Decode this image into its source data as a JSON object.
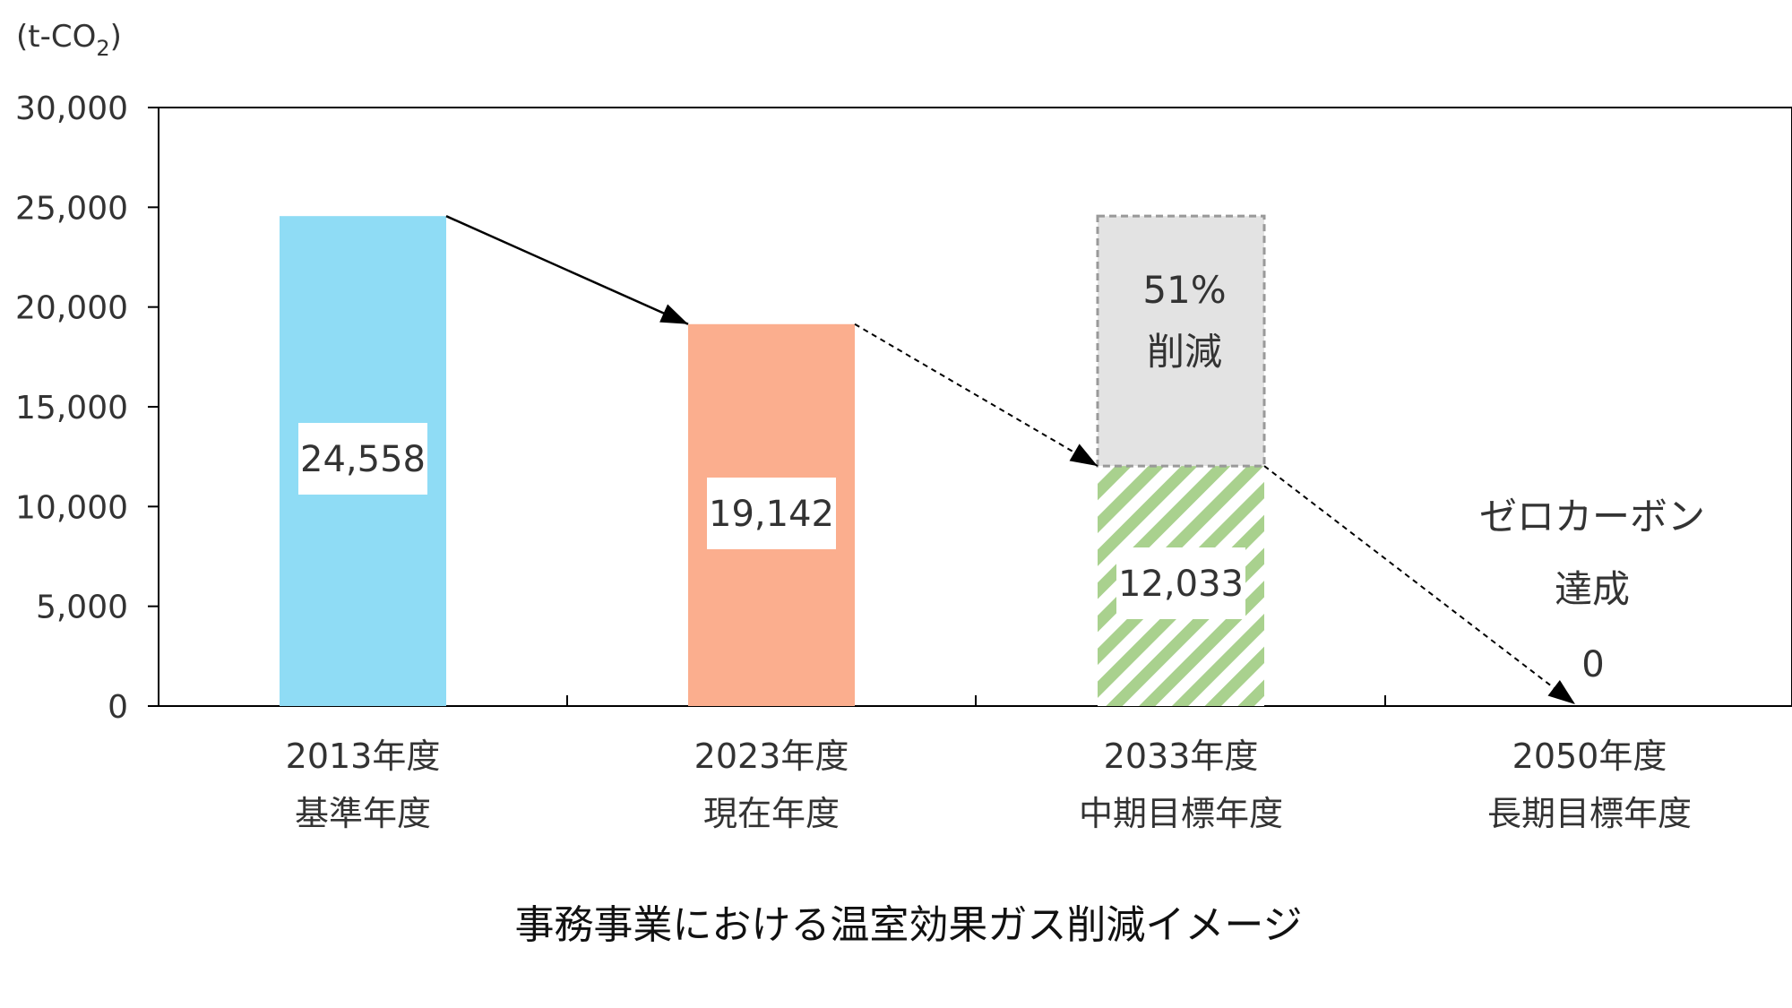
{
  "chart_data": {
    "type": "bar",
    "title": "事務事業における温室効果ガス削減イメージ",
    "unit_label": {
      "main": "(t-CO",
      "sub": "2",
      "close": ")"
    },
    "ylim": [
      0,
      30000
    ],
    "yticks": [
      "0",
      "5,000",
      "10,000",
      "15,000",
      "20,000",
      "25,000",
      "30,000"
    ],
    "ytick_values": [
      0,
      5000,
      10000,
      15000,
      20000,
      25000,
      30000
    ],
    "categories": [
      {
        "line1": "2013年度",
        "line2": "基準年度"
      },
      {
        "line1": "2023年度",
        "line2": "現在年度"
      },
      {
        "line1": "2033年度",
        "line2": "中期目標年度"
      },
      {
        "line1": "2050年度",
        "line2": "長期目標年度"
      }
    ],
    "values": [
      24558,
      19142,
      12033,
      0
    ],
    "value_labels": [
      "24,558",
      "19,142",
      "12,033",
      "0"
    ],
    "bar_colors": [
      "#8fdcf5",
      "#fbae8e",
      "#a9d18e",
      "#000000"
    ],
    "reduction_block": {
      "from": 12033,
      "to": 24558,
      "line1": "51%",
      "line2": "削減",
      "fill": "#e3e3e3",
      "border": "#999999"
    },
    "goal_annotation": {
      "line1": "ゼロカーボン",
      "line2": "達成"
    },
    "grid": false,
    "legend": "none"
  }
}
